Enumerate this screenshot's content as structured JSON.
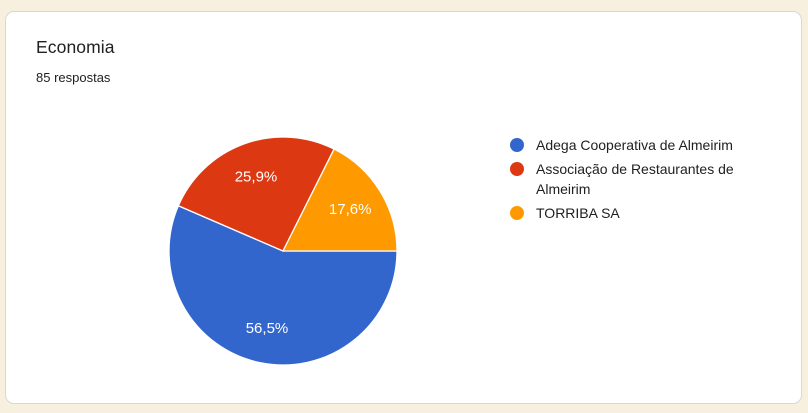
{
  "theme": {
    "page_bg": "#f8f0df",
    "card_bg": "#ffffff",
    "card_border": "#dcd8cc",
    "text_color": "#202124"
  },
  "card": {
    "title": "Economia",
    "subtitle": "85 respostas"
  },
  "chart_data": {
    "type": "pie",
    "title": "Economia",
    "subtitle": "85 respostas",
    "categories": [
      "Adega Cooperativa de Almeirim",
      "Associação de Restaurantes de Almeirim",
      "TORRIBA SA"
    ],
    "values": [
      56.5,
      25.9,
      17.6
    ],
    "value_labels": [
      "56,5%",
      "25,9%",
      "17,6%"
    ],
    "colors": [
      "#3366cc",
      "#dc3912",
      "#ff9900"
    ],
    "slice_label_color": "#ffffff",
    "slice_separator_color": "#ffffff",
    "legend_position": "right",
    "start_angle": "east",
    "direction": "clockwise"
  }
}
